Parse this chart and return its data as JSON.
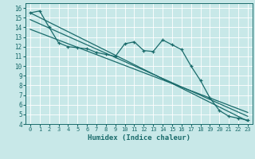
{
  "xlabel": "Humidex (Indice chaleur)",
  "ylabel": "",
  "background_color": "#c8e8e8",
  "grid_color": "#ffffff",
  "line_color": "#1a6b6b",
  "xlim": [
    -0.5,
    23.5
  ],
  "ylim": [
    4,
    16.5
  ],
  "xticks": [
    0,
    1,
    2,
    3,
    4,
    5,
    6,
    7,
    8,
    9,
    10,
    11,
    12,
    13,
    14,
    15,
    16,
    17,
    18,
    19,
    20,
    21,
    22,
    23
  ],
  "yticks": [
    4,
    5,
    6,
    7,
    8,
    9,
    10,
    11,
    12,
    13,
    14,
    15,
    16
  ],
  "series1_x": [
    0,
    1,
    2,
    3,
    4,
    5,
    6,
    7,
    8,
    9,
    10,
    11,
    12,
    13,
    14,
    15,
    16,
    17,
    18,
    19,
    20,
    21,
    22,
    23
  ],
  "series1_y": [
    15.5,
    15.7,
    14.0,
    12.4,
    12.0,
    11.9,
    11.8,
    11.4,
    11.2,
    11.0,
    12.3,
    12.5,
    11.6,
    11.5,
    12.7,
    12.2,
    11.7,
    10.0,
    8.5,
    6.7,
    5.4,
    4.8,
    4.6,
    4.4
  ],
  "line3_x": [
    0,
    23
  ],
  "line3_y": [
    15.5,
    4.3
  ],
  "line4_x": [
    0,
    23
  ],
  "line4_y": [
    14.8,
    4.8
  ],
  "line5_x": [
    0,
    23
  ],
  "line5_y": [
    13.8,
    5.2
  ]
}
